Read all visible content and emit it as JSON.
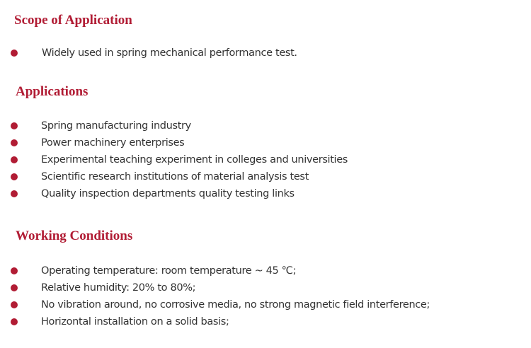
{
  "accent_color": "#b11c34",
  "sections": [
    {
      "title": "Scope of Application",
      "items": [
        "Widely used in spring mechanical performance test."
      ]
    },
    {
      "title": "Applications",
      "items": [
        "Spring manufacturing industry",
        "Power machinery enterprises",
        "Experimental teaching experiment in colleges and universities",
        "Scientific research institutions of material analysis test",
        "Quality inspection departments quality testing links"
      ]
    },
    {
      "title": "Working Conditions",
      "items": [
        "Operating temperature: room temperature ~ 45 ℃;",
        "Relative humidity: 20% to 80%;",
        "No vibration around, no corrosive media, no strong magnetic field interference;",
        "Horizontal installation on a solid basis;"
      ]
    }
  ]
}
